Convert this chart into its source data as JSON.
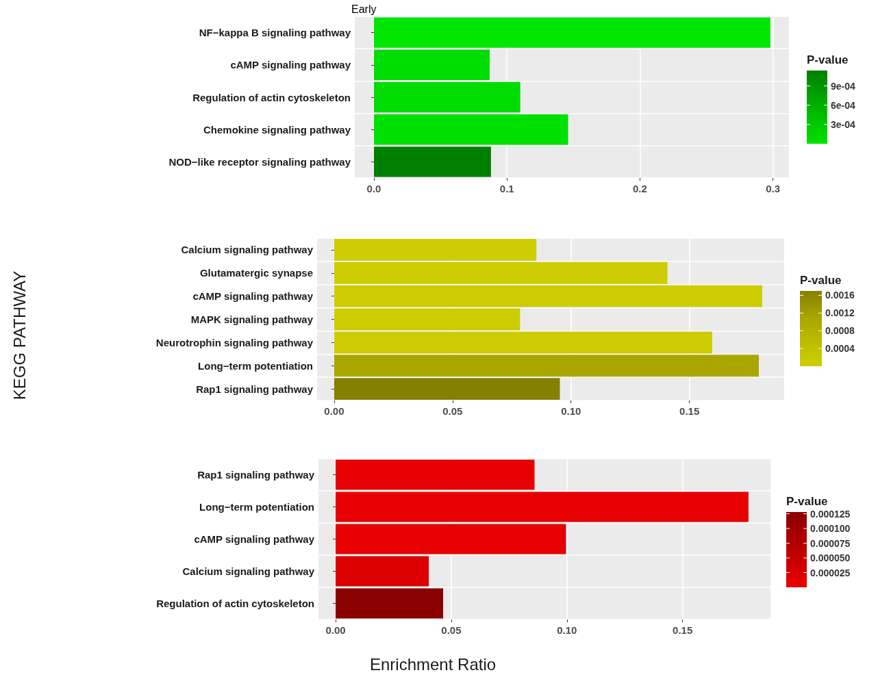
{
  "chart_data": [
    {
      "type": "bar",
      "orientation": "horizontal",
      "title": "Early",
      "grid": true,
      "categories": [
        "NF−kappa B signaling pathway",
        "cAMP signaling pathway",
        "Regulation of actin cytoskeleton",
        "Chemokine signaling pathway",
        "NOD−like receptor signaling pathway"
      ],
      "values": [
        0.298,
        0.087,
        0.11,
        0.146,
        0.088
      ],
      "cvalues": [
        2e-05,
        6e-05,
        8e-05,
        4e-05,
        0.00114
      ],
      "colors": [
        "#00e600",
        "#00dd00",
        "#00dc00",
        "#00e000",
        "#008000"
      ],
      "xlim": [
        -0.0144,
        0.312
      ],
      "xticks": [
        {
          "value": 0,
          "label": "0.0"
        },
        0.1,
        0.2,
        0.3
      ],
      "clabel": "P-value",
      "clim": [
        0,
        0.00114
      ],
      "cticks": [
        {
          "value": 0.0003,
          "label": "3e-04"
        },
        {
          "value": 0.0006,
          "label": "6e-04"
        },
        {
          "value": 0.0009,
          "label": "9e-04"
        }
      ]
    },
    {
      "type": "bar",
      "orientation": "horizontal",
      "ylabel": "KEGG PATHWAY",
      "grid": true,
      "categories": [
        "Calcium signaling pathway",
        "Glutamatergic synapse",
        "cAMP signaling pathway",
        "MAPK signaling pathway",
        "Neurotrophin signaling pathway",
        "Long−term potentiation",
        "Rap1 signaling pathway"
      ],
      "values": [
        0.0854,
        0.1407,
        0.1807,
        0.0785,
        0.1596,
        0.1793,
        0.0953
      ],
      "cvalues": [
        0.0001,
        0.0001,
        0.0001,
        0.0001,
        0.0001,
        0.0011,
        0.0017
      ],
      "colors": [
        "#cccc00",
        "#cccc00",
        "#cccc00",
        "#cccc00",
        "#cccc00",
        "#aaa600",
        "#858000"
      ],
      "xlim": [
        -0.0072,
        0.19
      ],
      "xticks": [
        {
          "value": 0,
          "label": "0.00"
        },
        {
          "value": 0.05,
          "label": "0.05"
        },
        {
          "value": 0.1,
          "label": "0.10"
        },
        0.15
      ],
      "clabel": "P-value",
      "clim": [
        0,
        0.0017
      ],
      "cticks": [
        0.0004,
        0.0008,
        0.0012,
        0.0016
      ]
    },
    {
      "type": "bar",
      "orientation": "horizontal",
      "xlabel": "Enrichment Ratio",
      "grid": true,
      "categories": [
        "Rap1 signaling pathway",
        "Long−term potentiation",
        "cAMP signaling pathway",
        "Calcium signaling pathway",
        "Regulation of actin cytoskeleton"
      ],
      "values": [
        0.086,
        0.1785,
        0.0996,
        0.0403,
        0.0465
      ],
      "cvalues": [
        1e-05,
        1e-05,
        1e-05,
        2e-05,
        0.000128
      ],
      "colors": [
        "#e60000",
        "#e60000",
        "#e60000",
        "#dc0000",
        "#8b0000"
      ],
      "xlim": [
        -0.0074,
        0.188
      ],
      "xticks": [
        {
          "value": 0,
          "label": "0.00"
        },
        {
          "value": 0.05,
          "label": "0.05"
        },
        {
          "value": 0.1,
          "label": "0.10"
        },
        0.15
      ],
      "clabel": "P-value",
      "clim": [
        0,
        0.000128
      ],
      "cticks": [
        {
          "value": 2.5e-05,
          "label": "0.000025"
        },
        {
          "value": 5e-05,
          "label": "0.000050"
        },
        {
          "value": 7.5e-05,
          "label": "0.000075"
        },
        {
          "value": 0.0001,
          "label": "0.000100"
        },
        {
          "value": 0.000125,
          "label": "0.000125"
        }
      ]
    }
  ]
}
